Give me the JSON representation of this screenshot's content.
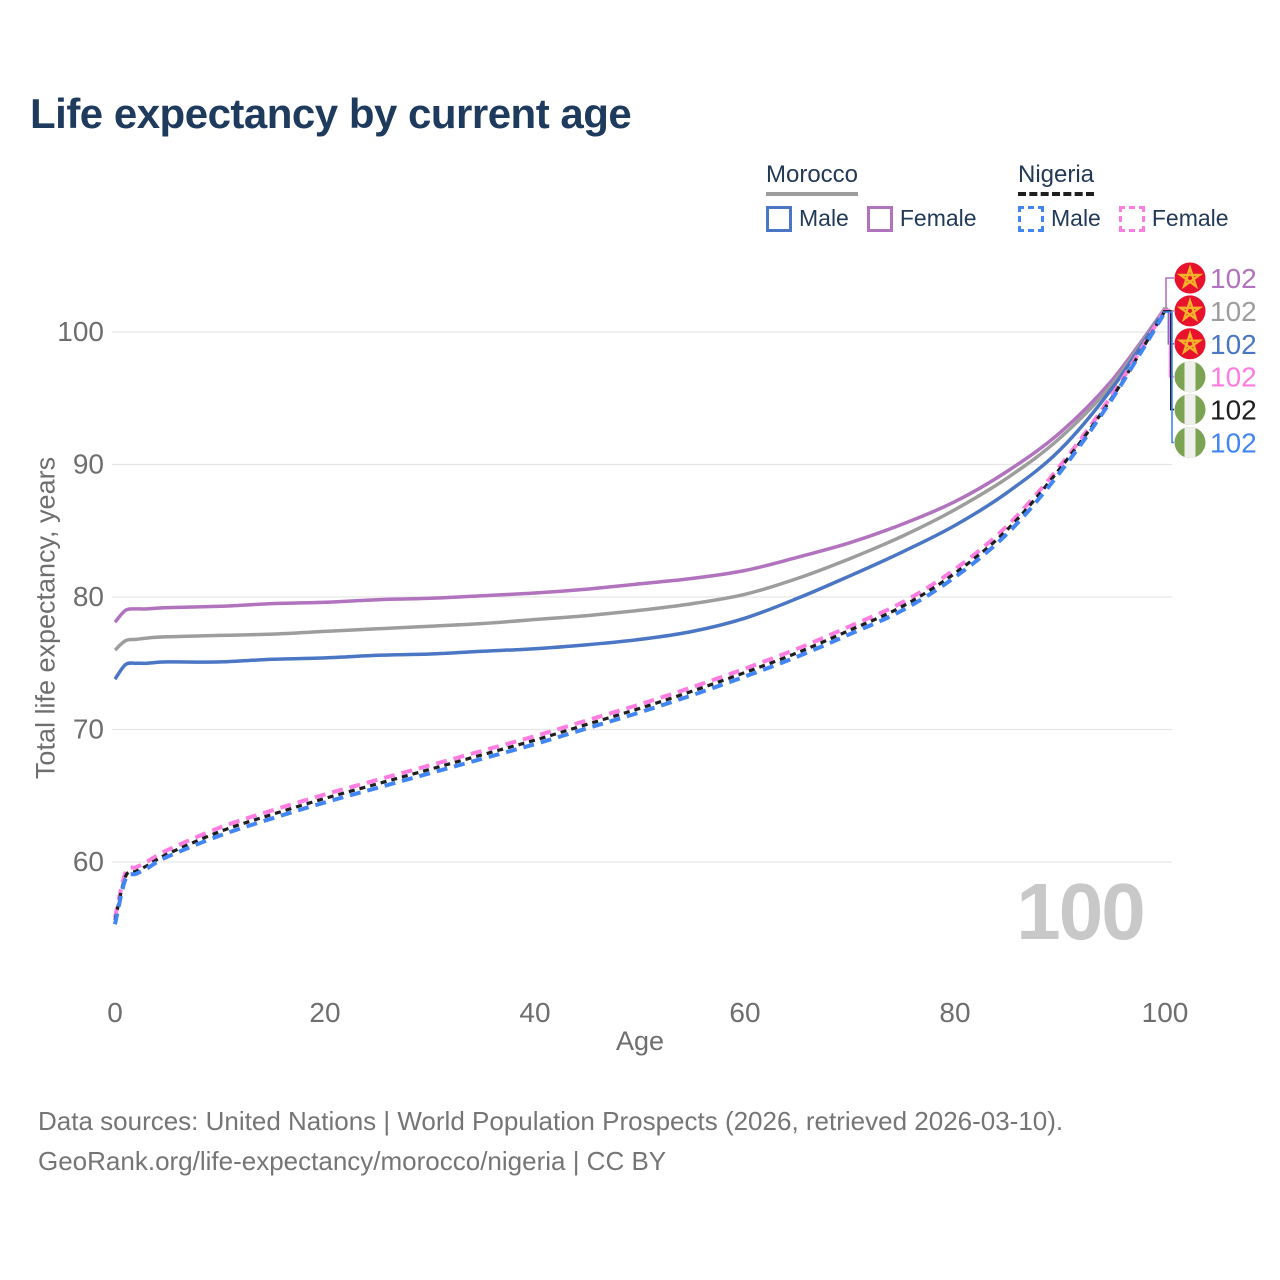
{
  "title": "Life expectancy by current age",
  "legend": {
    "morocco": {
      "label": "Morocco",
      "male": "Male",
      "female": "Female"
    },
    "nigeria": {
      "label": "Nigeria",
      "male": "Male",
      "female": "Female"
    }
  },
  "watermark": "100",
  "footer": {
    "line1": "Data sources: United Nations | World Population Prospects (2026, retrieved 2026-03-10).",
    "line2": "GeoRank.org/life-expectancy/morocco/nigeria | CC BY"
  },
  "flag_colors": {
    "morocco_red": "#e8122d",
    "star_gold": "#f3b229",
    "nigeria_green": "#7ba351",
    "band_white": "#efefec"
  },
  "chart_data": {
    "type": "line",
    "title": "Life expectancy by current age",
    "xlabel": "Age",
    "ylabel": "Total life expectancy, years",
    "xlim": [
      0,
      100
    ],
    "ylim": [
      52,
      104
    ],
    "x_ticks": [
      0,
      20,
      40,
      60,
      80,
      100
    ],
    "y_ticks": [
      60,
      70,
      80,
      90,
      100
    ],
    "grid": "horizontal",
    "legend_position": "top-right",
    "x": [
      0,
      1,
      2,
      3,
      5,
      10,
      15,
      20,
      25,
      30,
      35,
      40,
      45,
      50,
      55,
      60,
      65,
      70,
      75,
      80,
      85,
      90,
      95,
      100
    ],
    "series": [
      {
        "name": "Morocco Female",
        "country": "Morocco",
        "sex": "Female",
        "color": "#b173bd",
        "dash": "solid",
        "flag": "morocco",
        "end_label": "102",
        "values": [
          78.1,
          79.0,
          79.1,
          79.1,
          79.2,
          79.3,
          79.5,
          79.6,
          79.8,
          79.9,
          80.1,
          80.3,
          80.6,
          81.0,
          81.4,
          82.0,
          83.0,
          84.1,
          85.5,
          87.2,
          89.5,
          92.4,
          96.4,
          101.8
        ]
      },
      {
        "name": "Morocco Both sexes",
        "country": "Morocco",
        "sex": "Both",
        "color": "#9d9d9d",
        "dash": "solid",
        "flag": "morocco",
        "end_label": "102",
        "values": [
          76.0,
          76.7,
          76.8,
          76.9,
          77.0,
          77.1,
          77.2,
          77.4,
          77.6,
          77.8,
          78.0,
          78.3,
          78.6,
          79.0,
          79.5,
          80.2,
          81.4,
          82.9,
          84.6,
          86.6,
          89.0,
          92.0,
          96.1,
          101.8
        ]
      },
      {
        "name": "Morocco Male",
        "country": "Morocco",
        "sex": "Male",
        "color": "#4a76c4",
        "dash": "solid",
        "flag": "morocco",
        "end_label": "102",
        "values": [
          73.8,
          74.9,
          75.0,
          75.0,
          75.1,
          75.1,
          75.3,
          75.4,
          75.6,
          75.7,
          75.9,
          76.1,
          76.4,
          76.8,
          77.4,
          78.4,
          79.9,
          81.6,
          83.4,
          85.4,
          87.9,
          91.1,
          95.8,
          101.7
        ]
      },
      {
        "name": "Nigeria Female",
        "country": "Nigeria",
        "sex": "Female",
        "color": "#ff7ce0",
        "dash": "dashed",
        "flag": "nigeria",
        "end_label": "102",
        "values": [
          55.8,
          59.2,
          59.6,
          60.0,
          60.9,
          62.6,
          63.9,
          65.1,
          66.2,
          67.3,
          68.4,
          69.5,
          70.7,
          71.9,
          73.2,
          74.6,
          76.1,
          77.8,
          79.6,
          82.1,
          85.4,
          89.9,
          95.3,
          101.7
        ]
      },
      {
        "name": "Nigeria Both sexes",
        "country": "Nigeria",
        "sex": "Both",
        "color": "#1f1f1f",
        "dash": "dashed-fine",
        "flag": "nigeria",
        "end_label": "102",
        "values": [
          55.6,
          58.9,
          59.3,
          59.7,
          60.6,
          62.3,
          63.6,
          64.8,
          65.9,
          67.0,
          68.1,
          69.2,
          70.4,
          71.6,
          72.9,
          74.3,
          75.8,
          77.5,
          79.3,
          81.8,
          85.1,
          89.7,
          95.1,
          101.6
        ]
      },
      {
        "name": "Nigeria Male",
        "country": "Nigeria",
        "sex": "Male",
        "color": "#4286f5",
        "dash": "dashed",
        "flag": "nigeria",
        "end_label": "102",
        "values": [
          55.3,
          58.7,
          59.1,
          59.5,
          60.4,
          62.0,
          63.3,
          64.5,
          65.6,
          66.7,
          67.8,
          68.9,
          70.1,
          71.3,
          72.6,
          74.0,
          75.5,
          77.2,
          79.0,
          81.5,
          84.8,
          89.4,
          95.0,
          101.5
        ]
      }
    ]
  }
}
